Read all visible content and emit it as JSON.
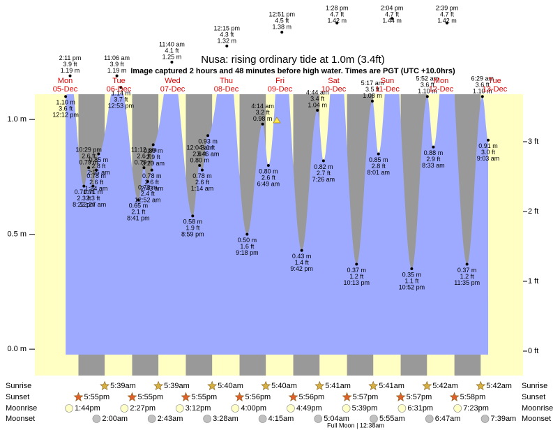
{
  "chart_data": {
    "type": "tide",
    "title": "Nusa: rising  ordinary tide at 1.0m (3.4ft)",
    "subtitle": "Image captured 2 hours and 48 minutes before high water. Times are PGT (UTC +10.0hrs)",
    "ylim": [
      -0.115,
      1.11
    ],
    "yticks": [
      {
        "value": 0,
        "label": "0.0 m"
      },
      {
        "value": 0.5,
        "label": "0.5 m"
      },
      {
        "value": 1,
        "label": "1.0 m"
      }
    ],
    "y2lim": [
      -0.35,
      3.68
    ],
    "y2ticks": [
      {
        "value": 0,
        "label": "0 ft"
      },
      {
        "value": 1,
        "label": "1 ft"
      },
      {
        "value": 2,
        "label": "2 ft"
      },
      {
        "value": 3,
        "label": "3 ft"
      }
    ],
    "colors": {
      "day": "#ffffc4",
      "night": "#999999",
      "water": "#9eaaff",
      "date": "#e00000"
    },
    "row_labels": [
      "Sunrise",
      "Sunset",
      "Moonrise",
      "Moonset"
    ],
    "moon_note": "Full Moon | 12:38am",
    "days": [
      {
        "name": "Mon",
        "date": "05-Dec",
        "sunset": "5:55pm",
        "moonrise": "1:44pm",
        "tides": [
          {
            "time": "12:12 pm",
            "m": 1.1,
            "m_label": "1.10 m",
            "ft": 3.6,
            "ft_label": "3.6 ft"
          },
          {
            "time": "2:11 pm",
            "m": 1.19,
            "m_label": "1.19 m",
            "ft": 3.9,
            "ft_label": "3.9 ft"
          },
          {
            "time": "8:22 pm",
            "m": 0.71,
            "m_label": "0.71 m",
            "ft": 2.3,
            "ft_label": "2.3 ft"
          },
          {
            "time": "10:29 pm",
            "m": 0.79,
            "m_label": "0.79 m",
            "ft": 2.6,
            "ft_label": "2.6 ft"
          }
        ]
      },
      {
        "name": "Tue",
        "date": "06-Dec",
        "sunrise": "5:39am",
        "sunset": "5:55pm",
        "moonrise": "2:27pm",
        "moonset": "2:00am",
        "tides": [
          {
            "time": "12:27 am",
            "m": 0.71,
            "m_label": "0.71 m",
            "ft": 2.3,
            "ft_label": "2.3 ft"
          },
          {
            "time": "1:54 am",
            "m": 0.78,
            "m_label": "0.78 m",
            "ft": 2.6,
            "ft_label": "2.6 ft"
          },
          {
            "time": "2:55 am",
            "m": 0.85,
            "m_label": "0.85 m",
            "ft": 2.8,
            "ft_label": "2.8 ft"
          },
          {
            "time": "11:06 am",
            "m": 1.19,
            "m_label": "1.19 m",
            "ft": 3.9,
            "ft_label": "3.9 ft"
          },
          {
            "time": "12:53 pm",
            "m": 1.14,
            "m_label": "1.14 m",
            "ft": 3.7,
            "ft_label": "3.7 ft"
          },
          {
            "time": "8:41 pm",
            "m": 0.65,
            "m_label": "0.65 m",
            "ft": 2.1,
            "ft_label": "2.1 ft"
          },
          {
            "time": "11:12 pm",
            "m": 0.79,
            "m_label": "0.79 m",
            "ft": 2.6,
            "ft_label": "2.6 ft"
          }
        ]
      },
      {
        "name": "Wed",
        "date": "07-Dec",
        "sunrise": "5:39am",
        "sunset": "5:55pm",
        "moonrise": "3:12pm",
        "moonset": "2:43am",
        "tides": [
          {
            "time": "12:52 am",
            "m": 0.73,
            "m_label": "0.73 m",
            "ft": 2.4,
            "ft_label": "2.4 ft"
          },
          {
            "time": "2:43 am",
            "m": 0.78,
            "m_label": "0.78 m",
            "ft": 2.6,
            "ft_label": "2.6 ft"
          },
          {
            "time": "3:20 am",
            "m": 0.89,
            "m_label": "0.89 m",
            "ft": 2.9,
            "ft_label": "2.9 ft"
          },
          {
            "time": "11:40 am",
            "m": 1.25,
            "m_label": "1.25 m",
            "ft": 4.1,
            "ft_label": "4.1 ft"
          },
          {
            "time": "8:59 pm",
            "m": 0.58,
            "m_label": "0.58 m",
            "ft": 1.9,
            "ft_label": "1.9 ft"
          }
        ]
      },
      {
        "name": "Thu",
        "date": "08-Dec",
        "sunrise": "5:40am",
        "sunset": "5:56pm",
        "moonrise": "4:00pm",
        "moonset": "3:28am",
        "tides": [
          {
            "time": "12:04 am",
            "m": 0.8,
            "m_label": "0.80 m",
            "ft": 2.6,
            "ft_label": "2.6 ft"
          },
          {
            "time": "1:14 am",
            "m": 0.78,
            "m_label": "0.78 m",
            "ft": 2.6,
            "ft_label": "2.6 ft"
          },
          {
            "time": "3:46 am",
            "m": 0.93,
            "m_label": "0.93 m",
            "ft": 3.1,
            "ft_label": "3.1 ft"
          },
          {
            "time": "12:15 pm",
            "m": 1.32,
            "m_label": "1.32 m",
            "ft": 4.3,
            "ft_label": "4.3 ft"
          },
          {
            "time": "9:18 pm",
            "m": 0.5,
            "m_label": "0.50 m",
            "ft": 1.6,
            "ft_label": "1.6 ft"
          }
        ]
      },
      {
        "name": "Fri",
        "date": "09-Dec",
        "sunrise": "5:40am",
        "sunset": "5:56pm",
        "moonrise": "4:49pm",
        "moonset": "4:15am",
        "tides": [
          {
            "time": "4:14 am",
            "m": 0.98,
            "m_label": "0.98 m",
            "ft": 3.2,
            "ft_label": "3.2 ft"
          },
          {
            "time": "6:49 am",
            "m": 0.8,
            "m_label": "0.80 m",
            "ft": 2.6,
            "ft_label": "2.6 ft"
          },
          {
            "time": "12:51 pm",
            "m": 1.38,
            "m_label": "1.38 m",
            "ft": 4.5,
            "ft_label": "4.5 ft"
          },
          {
            "time": "9:42 pm",
            "m": 0.43,
            "m_label": "0.43 m",
            "ft": 1.4,
            "ft_label": "1.4 ft"
          }
        ]
      },
      {
        "name": "Sat",
        "date": "10-Dec",
        "sunrise": "5:41am",
        "sunset": "5:57pm",
        "moonrise": "5:39pm",
        "moonset": "5:04am",
        "tides": [
          {
            "time": "4:44 am",
            "m": 1.04,
            "m_label": "1.04 m",
            "ft": 3.4,
            "ft_label": "3.4 ft"
          },
          {
            "time": "7:26 am",
            "m": 0.82,
            "m_label": "0.82 m",
            "ft": 2.7,
            "ft_label": "2.7 ft"
          },
          {
            "time": "1:28 pm",
            "m": 1.42,
            "m_label": "1.42 m",
            "ft": 4.7,
            "ft_label": "4.7 ft"
          },
          {
            "time": "10:13 pm",
            "m": 0.37,
            "m_label": "0.37 m",
            "ft": 1.2,
            "ft_label": "1.2 ft"
          }
        ]
      },
      {
        "name": "Sun",
        "date": "11-Dec",
        "sunrise": "5:41am",
        "sunset": "5:57pm",
        "moonrise": "6:31pm",
        "moonset": "5:55am",
        "tides": [
          {
            "time": "5:17 am",
            "m": 1.08,
            "m_label": "1.08 m",
            "ft": 3.5,
            "ft_label": "3.5 ft"
          },
          {
            "time": "8:01 am",
            "m": 0.85,
            "m_label": "0.85 m",
            "ft": 2.8,
            "ft_label": "2.8 ft"
          },
          {
            "time": "2:04 pm",
            "m": 1.44,
            "m_label": "1.44 m",
            "ft": 4.7,
            "ft_label": "4.7 ft"
          },
          {
            "time": "10:52 pm",
            "m": 0.35,
            "m_label": "0.35 m",
            "ft": 1.1,
            "ft_label": "1.1 ft"
          }
        ]
      },
      {
        "name": "Mon",
        "date": "12-Dec",
        "sunrise": "5:42am",
        "sunset": "5:58pm",
        "moonrise": "7:23pm",
        "moonset": "6:47am",
        "tides": [
          {
            "time": "5:52 am",
            "m": 1.1,
            "m_label": "1.10 m",
            "ft": 3.6,
            "ft_label": "3.6 ft"
          },
          {
            "time": "8:33 am",
            "m": 0.88,
            "m_label": "0.88 m",
            "ft": 2.9,
            "ft_label": "2.9 ft"
          },
          {
            "time": "2:39 pm",
            "m": 1.42,
            "m_label": "1.42 m",
            "ft": 4.7,
            "ft_label": "4.7 ft"
          },
          {
            "time": "11:35 pm",
            "m": 0.37,
            "m_label": "0.37 m",
            "ft": 1.2,
            "ft_label": "1.2 ft"
          }
        ]
      },
      {
        "name": "Tue",
        "date": "13-Dec",
        "sunrise": "5:42am",
        "moonset": "7:39am",
        "tides": [
          {
            "time": "6:29 am",
            "m": 1.1,
            "m_label": "1.10 m",
            "ft": 3.6,
            "ft_label": "3.6 ft"
          },
          {
            "time": "9:03 am",
            "m": 0.91,
            "m_label": "0.91 m",
            "ft": 3.0,
            "ft_label": "3.0 ft"
          }
        ]
      }
    ]
  }
}
